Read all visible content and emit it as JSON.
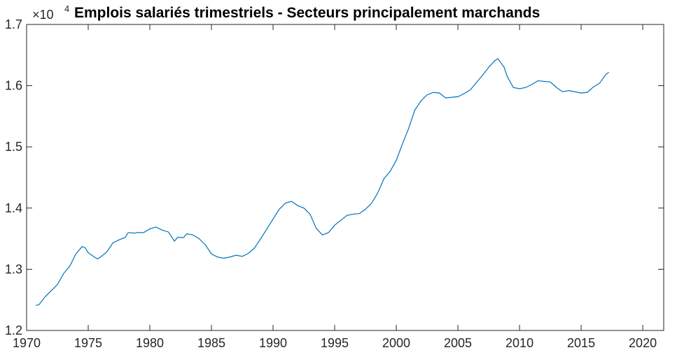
{
  "chart_data": {
    "type": "line",
    "title": "Emplois salariés trimestriels - Secteurs principalement marchands",
    "y_multiplier": {
      "base": "×10",
      "exponent": "4"
    },
    "x": [
      1970.75,
      1971,
      1971.5,
      1972,
      1972.5,
      1973,
      1973.5,
      1974,
      1974.5,
      1974.75,
      1975,
      1975.5,
      1975.75,
      1976,
      1976.5,
      1977,
      1977.5,
      1978,
      1978.25,
      1978.75,
      1979,
      1979.5,
      1980,
      1980.5,
      1981,
      1981.5,
      1982,
      1982.25,
      1982.75,
      1983,
      1983.5,
      1984,
      1984.5,
      1985,
      1985.5,
      1986,
      1986.5,
      1987,
      1987.5,
      1988,
      1988.5,
      1989,
      1989.5,
      1990,
      1990.5,
      1991,
      1991.5,
      1992,
      1992.5,
      1993,
      1993.5,
      1994,
      1994.5,
      1995,
      1995.5,
      1996,
      1996.5,
      1997,
      1997.5,
      1998,
      1998.5,
      1999,
      1999.5,
      2000,
      2000.5,
      2001,
      2001.5,
      2002,
      2002.5,
      2003,
      2003.5,
      2004,
      2004.5,
      2005,
      2005.5,
      2006,
      2006.5,
      2007,
      2007.5,
      2008,
      2008.25,
      2008.75,
      2009,
      2009.5,
      2010,
      2010.5,
      2011,
      2011.5,
      2012,
      2012.5,
      2013,
      2013.5,
      2014,
      2014.5,
      2015,
      2015.5,
      2016,
      2016.5,
      2017,
      2017.25
    ],
    "series": [
      {
        "color": "#0072bd",
        "values": [
          1.241,
          1.242,
          1.255,
          1.265,
          1.275,
          1.293,
          1.305,
          1.325,
          1.337,
          1.335,
          1.327,
          1.32,
          1.317,
          1.32,
          1.328,
          1.343,
          1.348,
          1.352,
          1.36,
          1.359,
          1.36,
          1.36,
          1.366,
          1.369,
          1.364,
          1.361,
          1.346,
          1.352,
          1.352,
          1.358,
          1.356,
          1.35,
          1.34,
          1.325,
          1.32,
          1.318,
          1.32,
          1.323,
          1.321,
          1.326,
          1.335,
          1.35,
          1.366,
          1.382,
          1.398,
          1.408,
          1.411,
          1.404,
          1.4,
          1.39,
          1.367,
          1.356,
          1.36,
          1.372,
          1.38,
          1.388,
          1.39,
          1.391,
          1.398,
          1.408,
          1.425,
          1.448,
          1.46,
          1.478,
          1.505,
          1.53,
          1.56,
          1.575,
          1.585,
          1.589,
          1.588,
          1.58,
          1.581,
          1.582,
          1.587,
          1.593,
          1.605,
          1.617,
          1.63,
          1.641,
          1.644,
          1.63,
          1.615,
          1.597,
          1.595,
          1.597,
          1.602,
          1.608,
          1.607,
          1.606,
          1.597,
          1.59,
          1.592,
          1.59,
          1.588,
          1.589,
          1.598,
          1.604,
          1.618,
          1.622
        ]
      }
    ],
    "xlim": [
      1970,
      2021.7
    ],
    "xticks": [
      1970,
      1975,
      1980,
      1985,
      1990,
      1995,
      2000,
      2005,
      2010,
      2015,
      2020
    ],
    "ylim": [
      1.2,
      1.7
    ],
    "yticks": [
      1.2,
      1.3,
      1.4,
      1.5,
      1.6,
      1.7
    ]
  }
}
